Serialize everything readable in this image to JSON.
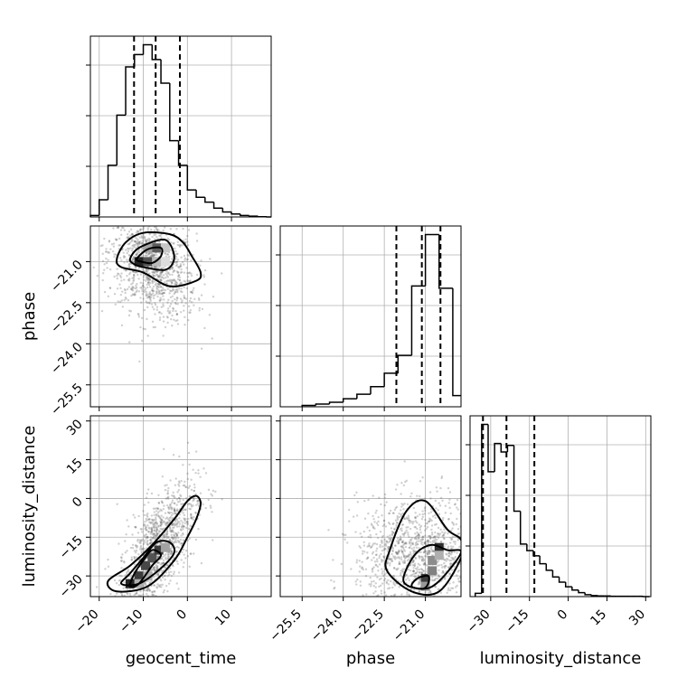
{
  "chart_data": {
    "type": "corner",
    "parameters": [
      "geocent_time",
      "phase",
      "luminosity_distance"
    ],
    "ranges": {
      "geocent_time": [
        -22,
        19
      ],
      "phase": [
        -26.3,
        -19.7
      ],
      "luminosity_distance": [
        -38,
        32
      ]
    },
    "ticks": {
      "geocent_time": {
        "values": [
          -20,
          -10,
          0,
          10
        ],
        "labels": [
          "−20",
          "−10",
          "0",
          "10"
        ]
      },
      "phase": {
        "values": [
          -25.5,
          -24.0,
          -22.5,
          -21.0
        ],
        "labels": [
          "−25.5",
          "−24.0",
          "−22.5",
          "−21.0"
        ]
      },
      "luminosity_distance": {
        "values": [
          -30,
          -15,
          0,
          15,
          30
        ],
        "labels": [
          "−30",
          "−15",
          "0",
          "15",
          "30"
        ]
      }
    },
    "histograms": {
      "geocent_time": {
        "edges": [
          -22,
          -20,
          -18,
          -16,
          -14,
          -12,
          -10,
          -8,
          -6,
          -4,
          -2,
          0,
          2,
          4,
          6,
          8,
          10,
          12,
          14,
          16,
          18,
          19
        ],
        "values": [
          0.3,
          3.5,
          10.5,
          20.7,
          30.5,
          33.0,
          35.0,
          32.0,
          27.2,
          15.5,
          10.5,
          5.5,
          4.0,
          3.0,
          1.8,
          1.0,
          0.6,
          0.3,
          0.15,
          0.05,
          0.0
        ],
        "quantiles": [
          -12.1,
          -7.2,
          -1.7
        ]
      },
      "phase": {
        "edges": [
          -25.5,
          -25.0,
          -24.5,
          -24.0,
          -23.5,
          -23.0,
          -22.5,
          -22.0,
          -21.5,
          -21.0,
          -20.5,
          -20.0,
          -19.7
        ],
        "values": [
          0.3,
          0.6,
          1.0,
          1.8,
          2.8,
          4.5,
          7.5,
          11.5,
          27.0,
          38.5,
          26.5,
          2.5
        ],
        "quantiles": [
          -22.06,
          -21.13,
          -20.45
        ]
      },
      "luminosity_distance": {
        "edges": [
          -36,
          -33.5,
          -31,
          -28.5,
          -26,
          -23.5,
          -21,
          -18.5,
          -16,
          -13.5,
          -11,
          -8.5,
          -6,
          -3.5,
          -1,
          1.5,
          4,
          6.5,
          9,
          11.5,
          14,
          16.5,
          19,
          21.5,
          24,
          26.5,
          29,
          31.5
        ],
        "values": [
          0.5,
          26.2,
          19.0,
          23.3,
          22.0,
          23.0,
          13.0,
          8.0,
          7.0,
          6.2,
          5.0,
          4.0,
          3.0,
          2.2,
          1.5,
          1.0,
          0.6,
          0.3,
          0.15,
          0.1,
          0.1,
          0.05,
          0.05,
          0.05,
          0.05,
          0.05,
          0.0
        ],
        "quantiles": [
          -33.0,
          -23.9,
          -13.1
        ]
      }
    },
    "pairs": [
      {
        "x": "geocent_time",
        "y": "phase",
        "contours": [
          [
            [
              -16,
              -20.9
            ],
            [
              -14,
              -20.3
            ],
            [
              -10,
              -19.95
            ],
            [
              -4,
              -20.0
            ],
            [
              -1,
              -20.3
            ],
            [
              1,
              -20.8
            ],
            [
              3,
              -21.4
            ],
            [
              2,
              -21.7
            ],
            [
              -4,
              -21.9
            ],
            [
              -10,
              -21.4
            ],
            [
              -15,
              -21.2
            ]
          ],
          [
            [
              -13,
              -20.9
            ],
            [
              -11,
              -20.5
            ],
            [
              -6,
              -20.2
            ],
            [
              -4,
              -20.35
            ],
            [
              -3,
              -20.9
            ],
            [
              -5,
              -21.3
            ],
            [
              -10,
              -21.2
            ],
            [
              -12,
              -21.1
            ]
          ],
          [
            [
              -11.5,
              -20.9
            ],
            [
              -9,
              -20.55
            ],
            [
              -6,
              -20.5
            ],
            [
              -6,
              -20.8
            ],
            [
              -8,
              -21.05
            ],
            [
              -10.5,
              -21.0
            ]
          ]
        ],
        "density_cells": [
          {
            "x": -11,
            "y": -21.0,
            "w": 0.95
          },
          {
            "x": -9,
            "y": -21.0,
            "w": 0.75
          },
          {
            "x": -7,
            "y": -20.5,
            "w": 0.7
          },
          {
            "x": -9,
            "y": -20.5,
            "w": 0.4
          },
          {
            "x": -7,
            "y": -21.0,
            "w": 0.3
          },
          {
            "x": -5,
            "y": -20.5,
            "w": 0.25
          },
          {
            "x": -5,
            "y": -21.0,
            "w": 0.15
          }
        ],
        "cloud": {
          "cx": -8,
          "cy": -21.2,
          "sx": 5,
          "sy": 0.9,
          "tilt": -0.06,
          "n": 1100
        }
      },
      {
        "x": "geocent_time",
        "y": "luminosity_distance",
        "contours": [
          [
            [
              -18,
              -32
            ],
            [
              -16,
              -36
            ],
            [
              -9,
              -34
            ],
            [
              -3,
              -24
            ],
            [
              0,
              -15
            ],
            [
              2,
              -8
            ],
            [
              3,
              -2
            ],
            [
              2,
              1
            ],
            [
              0,
              -1
            ],
            [
              -3,
              -8
            ],
            [
              -8,
              -18
            ],
            [
              -13,
              -26
            ]
          ],
          [
            [
              -15,
              -33
            ],
            [
              -11,
              -33
            ],
            [
              -6,
              -27
            ],
            [
              -3,
              -21
            ],
            [
              -4,
              -17
            ],
            [
              -7,
              -17
            ],
            [
              -10,
              -23
            ],
            [
              -13,
              -29
            ]
          ],
          [
            [
              -13,
              -34
            ],
            [
              -11,
              -33
            ],
            [
              -8,
              -26
            ],
            [
              -6,
              -22
            ],
            [
              -8,
              -20
            ],
            [
              -10,
              -24
            ],
            [
              -12,
              -29
            ]
          ]
        ],
        "density_cells": [
          {
            "x": -13,
            "y": -33,
            "w": 0.95
          },
          {
            "x": -11,
            "y": -30,
            "w": 0.85
          },
          {
            "x": -9.5,
            "y": -26,
            "w": 0.8
          },
          {
            "x": -8,
            "y": -23,
            "w": 0.75
          },
          {
            "x": -6.5,
            "y": -20,
            "w": 0.85
          },
          {
            "x": -5,
            "y": -19,
            "w": 0.4
          },
          {
            "x": -11,
            "y": -33,
            "w": 0.35
          },
          {
            "x": -9,
            "y": -30,
            "w": 0.35
          }
        ],
        "cloud": {
          "cx": -7,
          "cy": -20,
          "sx": 4.5,
          "sy": 10,
          "tilt": 2.0,
          "n": 1200
        }
      },
      {
        "x": "phase",
        "y": "luminosity_distance",
        "contours": [
          [
            [
              -22.3,
              -20
            ],
            [
              -21.7,
              -5
            ],
            [
              -21.0,
              -1
            ],
            [
              -20.2,
              -12
            ],
            [
              -19.7,
              -16
            ],
            [
              -19.7,
              -23
            ],
            [
              -20.5,
              -36
            ],
            [
              -21.5,
              -36
            ],
            [
              -22.4,
              -28
            ]
          ],
          [
            [
              -21.8,
              -32
            ],
            [
              -21.4,
              -22
            ],
            [
              -20.8,
              -18
            ],
            [
              -20.2,
              -20
            ],
            [
              -19.7,
              -21
            ],
            [
              -20.5,
              -32
            ],
            [
              -21.1,
              -35
            ]
          ],
          [
            [
              -21.5,
              -34
            ],
            [
              -21.3,
              -31
            ],
            [
              -20.9,
              -30
            ],
            [
              -20.9,
              -33
            ],
            [
              -21.1,
              -35
            ]
          ]
        ],
        "density_cells": [
          {
            "x": -20.5,
            "y": -19,
            "w": 0.9
          },
          {
            "x": -21.0,
            "y": -31,
            "w": 0.85
          },
          {
            "x": -20.75,
            "y": -24,
            "w": 0.5
          },
          {
            "x": -20.75,
            "y": -28,
            "w": 0.55
          },
          {
            "x": -21.0,
            "y": -34,
            "w": 0.45
          },
          {
            "x": -20.5,
            "y": -22,
            "w": 0.35
          }
        ],
        "cloud": {
          "cx": -21.3,
          "cy": -22,
          "sx": 1.1,
          "sy": 11,
          "tilt": 0,
          "n": 1200
        }
      }
    ]
  }
}
